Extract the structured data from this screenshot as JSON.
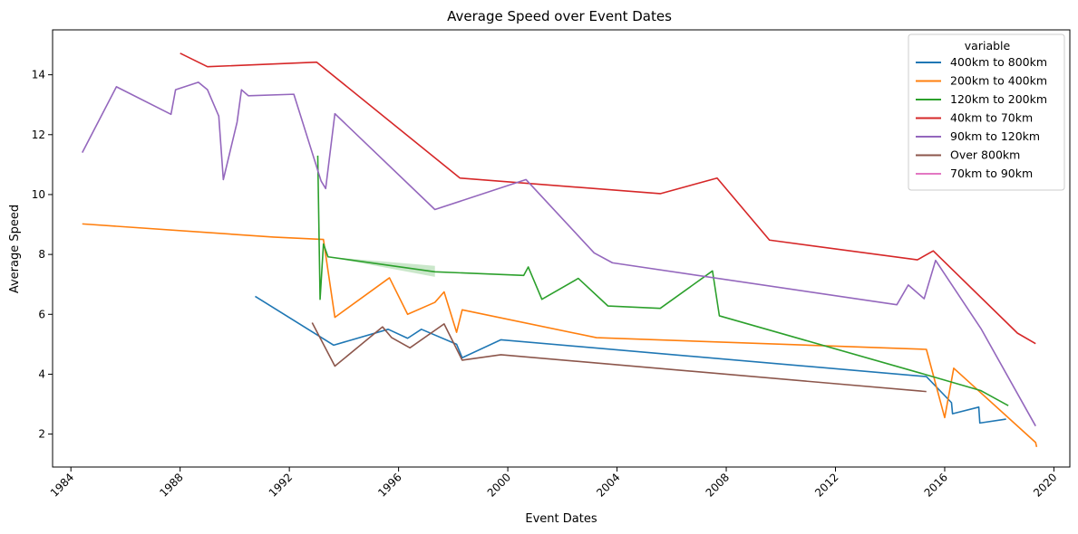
{
  "chart_data": {
    "type": "line",
    "title": "Average Speed over Event Dates",
    "xlabel": "Event Dates",
    "ylabel": "Average Speed",
    "x_type": "date",
    "xlim": [
      "1983-05-01",
      "2020-08-01"
    ],
    "ylim": [
      0.9,
      15.5
    ],
    "x_ticks": [
      "1984",
      "1988",
      "1992",
      "1996",
      "2000",
      "2004",
      "2008",
      "2012",
      "2016",
      "2020"
    ],
    "y_ticks": [
      2,
      4,
      6,
      8,
      10,
      12,
      14
    ],
    "grid": false,
    "legend": {
      "title": "variable",
      "position": "top-right"
    },
    "series": [
      {
        "name": "400km to 800km",
        "color": "#1f77b4",
        "points": [
          [
            "1990-10-01",
            6.6
          ],
          [
            "1993-08-15",
            4.97
          ],
          [
            "1995-08-15",
            5.5
          ],
          [
            "1996-05-01",
            5.2
          ],
          [
            "1996-11-01",
            5.5
          ],
          [
            "1998-02-15",
            5.0
          ],
          [
            "1998-05-01",
            4.55
          ],
          [
            "1999-10-01",
            5.15
          ],
          [
            "2015-05-01",
            3.92
          ],
          [
            "2016-04-01",
            3.05
          ],
          [
            "2016-04-15",
            2.68
          ],
          [
            "2017-04-01",
            2.9
          ],
          [
            "2017-04-15",
            2.37
          ],
          [
            "2018-04-01",
            2.5
          ]
        ]
      },
      {
        "name": "200km to 400km",
        "color": "#ff7f0e",
        "points": [
          [
            "1984-06-01",
            9.02
          ],
          [
            "1991-06-01",
            8.58
          ],
          [
            "1993-04-01",
            8.5
          ],
          [
            "1993-09-01",
            5.9
          ],
          [
            "1995-09-01",
            7.22
          ],
          [
            "1996-05-01",
            6.0
          ],
          [
            "1997-05-01",
            6.4
          ],
          [
            "1997-09-01",
            6.75
          ],
          [
            "1998-02-15",
            5.4
          ],
          [
            "1998-05-01",
            6.15
          ],
          [
            "2003-04-01",
            5.22
          ],
          [
            "2015-05-01",
            4.83
          ],
          [
            "2016-01-01",
            2.55
          ],
          [
            "2016-05-01",
            4.2
          ],
          [
            "2019-05-01",
            1.72
          ],
          [
            "2019-05-15",
            1.57
          ]
        ]
      },
      {
        "name": "120km to 200km",
        "color": "#2ca02c",
        "points": [
          [
            "1993-01-15",
            11.3
          ],
          [
            "1993-02-15",
            6.5
          ],
          [
            "1993-04-01",
            8.35
          ],
          [
            "1993-06-01",
            7.92
          ],
          [
            "1997-05-01",
            7.42
          ],
          [
            "2000-08-01",
            7.3
          ],
          [
            "2000-10-01",
            7.58
          ],
          [
            "2001-04-01",
            6.5
          ],
          [
            "2002-08-01",
            7.2
          ],
          [
            "2003-09-01",
            6.28
          ],
          [
            "2005-08-01",
            6.2
          ],
          [
            "2007-07-01",
            7.45
          ],
          [
            "2007-10-01",
            5.95
          ],
          [
            "2015-05-01",
            3.98
          ],
          [
            "2017-05-01",
            3.45
          ],
          [
            "2018-05-01",
            2.95
          ]
        ],
        "band": {
          "upper": [
            [
              "1993-06-01",
              7.92
            ],
            [
              "1997-05-01",
              7.62
            ]
          ],
          "lower": [
            [
              "1993-06-01",
              7.92
            ],
            [
              "1997-05-01",
              7.25
            ]
          ]
        }
      },
      {
        "name": "40km to 70km",
        "color": "#d62728",
        "points": [
          [
            "1988-01-01",
            14.72
          ],
          [
            "1989-01-01",
            14.27
          ],
          [
            "1993-01-01",
            14.42
          ],
          [
            "1998-04-01",
            10.55
          ],
          [
            "2005-08-01",
            10.03
          ],
          [
            "2007-09-01",
            10.55
          ],
          [
            "2009-08-01",
            8.48
          ],
          [
            "2015-01-01",
            7.82
          ],
          [
            "2015-08-01",
            8.12
          ],
          [
            "2018-09-01",
            5.37
          ],
          [
            "2019-05-01",
            5.02
          ]
        ]
      },
      {
        "name": "90km to 120km",
        "color": "#9467bd",
        "points": [
          [
            "1984-06-01",
            11.4
          ],
          [
            "1985-09-01",
            13.6
          ],
          [
            "1987-09-01",
            12.68
          ],
          [
            "1987-11-01",
            13.5
          ],
          [
            "1988-09-01",
            13.75
          ],
          [
            "1989-01-01",
            13.5
          ],
          [
            "1989-06-01",
            12.62
          ],
          [
            "1989-08-01",
            10.5
          ],
          [
            "1990-02-01",
            12.42
          ],
          [
            "1990-04-01",
            13.5
          ],
          [
            "1990-07-01",
            13.3
          ],
          [
            "1992-03-01",
            13.35
          ],
          [
            "1993-03-01",
            10.45
          ],
          [
            "1993-05-01",
            10.2
          ],
          [
            "1993-09-01",
            12.7
          ],
          [
            "1997-05-01",
            9.5
          ],
          [
            "2000-09-01",
            10.5
          ],
          [
            "2003-03-01",
            8.05
          ],
          [
            "2003-11-01",
            7.72
          ],
          [
            "2014-04-01",
            6.32
          ],
          [
            "2014-09-01",
            6.98
          ],
          [
            "2015-04-01",
            6.52
          ],
          [
            "2015-09-01",
            7.8
          ],
          [
            "2017-05-01",
            5.52
          ],
          [
            "2019-05-01",
            2.27
          ]
        ]
      },
      {
        "name": "Over 800km",
        "color": "#8c564b",
        "points": [
          [
            "1992-11-01",
            5.72
          ],
          [
            "1993-09-01",
            4.27
          ],
          [
            "1995-06-01",
            5.58
          ],
          [
            "1995-10-01",
            5.22
          ],
          [
            "1996-06-01",
            4.88
          ],
          [
            "1997-09-01",
            5.68
          ],
          [
            "1998-05-01",
            4.47
          ],
          [
            "1999-10-01",
            4.65
          ],
          [
            "2015-05-01",
            3.42
          ]
        ]
      },
      {
        "name": "70km to 90km",
        "color": "#e377c2",
        "points": []
      }
    ]
  }
}
